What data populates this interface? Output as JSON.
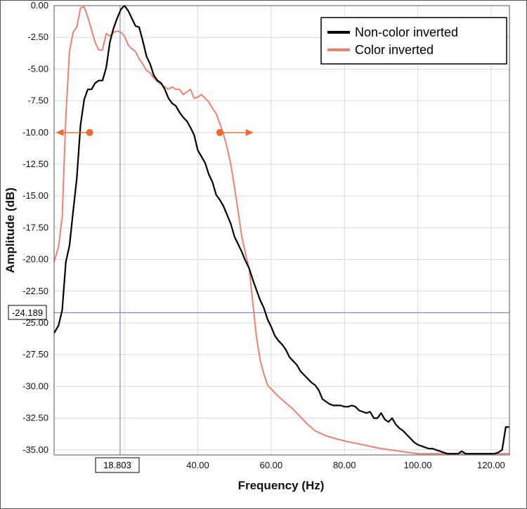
{
  "chart_data": {
    "type": "line",
    "xlabel": "Frequency (Hz)",
    "ylabel": "Amplitude (dB)",
    "xlim": [
      0.8,
      125
    ],
    "ylim": [
      -35.4,
      0
    ],
    "x_ticks": [
      "20.00",
      "40.00",
      "60.00",
      "80.00",
      "100.00",
      "120.00"
    ],
    "y_ticks": [
      "0.00",
      "-2.50",
      "-5.00",
      "-7.50",
      "-10.00",
      "-12.50",
      "-15.00",
      "-17.50",
      "-20.00",
      "-22.50",
      "-25.00",
      "-27.50",
      "-30.00",
      "-32.50",
      "-35.00"
    ],
    "grid": true,
    "legend_position": "top-right",
    "cursor": {
      "x": 18.803,
      "y": -24.189,
      "x_label": "18.803",
      "y_label": "-24.189"
    },
    "markers": [
      {
        "series": "Color inverted",
        "x": 10.5,
        "y": -10.0,
        "arrow": "left"
      },
      {
        "series": "Color inverted",
        "x": 46.0,
        "y": -10.0,
        "arrow": "right"
      }
    ],
    "series": [
      {
        "name": "Non-color inverted",
        "color": "#000000",
        "x": [
          0.8,
          2,
          3,
          4,
          5,
          6,
          7,
          8,
          9,
          10,
          11,
          12,
          13,
          14,
          15,
          16,
          17,
          18,
          19,
          20,
          21,
          22,
          23,
          24,
          25,
          26,
          27,
          28,
          29,
          30,
          31,
          32,
          33,
          34,
          35,
          36,
          37,
          38,
          39,
          40,
          41,
          42,
          43,
          44,
          45,
          46,
          47,
          48,
          49,
          50,
          51,
          52,
          53,
          54,
          55,
          56,
          57,
          58,
          59,
          60,
          61,
          62,
          63,
          64,
          65,
          66,
          67,
          68,
          69,
          70,
          71,
          72,
          73,
          74,
          75,
          76,
          77,
          78,
          79,
          80,
          81,
          82,
          83,
          84,
          85,
          86,
          87,
          88,
          89,
          90,
          91,
          92,
          93,
          94,
          95,
          96,
          97,
          98,
          99,
          100,
          101,
          102,
          103,
          104,
          105,
          106,
          107,
          108,
          109,
          110,
          111,
          112,
          113,
          114,
          115,
          116,
          117,
          118,
          119,
          120,
          121,
          122,
          123,
          124,
          125
        ],
        "y": [
          -25.8,
          -25.2,
          -24.0,
          -20.2,
          -18.9,
          -16.2,
          -13.6,
          -9.4,
          -7.4,
          -6.6,
          -6.6,
          -6.1,
          -5.9,
          -5.9,
          -4.9,
          -2.9,
          -1.8,
          -1.0,
          -0.3,
          0.0,
          -0.4,
          -1.0,
          -1.6,
          -1.7,
          -2.8,
          -4.0,
          -4.6,
          -5.5,
          -5.9,
          -6.1,
          -6.6,
          -7.3,
          -7.7,
          -7.9,
          -8.4,
          -8.8,
          -9.1,
          -9.6,
          -10.2,
          -11.4,
          -11.9,
          -12.4,
          -13.3,
          -13.9,
          -14.9,
          -15.3,
          -15.8,
          -16.5,
          -17.2,
          -18.2,
          -18.8,
          -19.4,
          -20.1,
          -20.7,
          -21.6,
          -22.4,
          -23.2,
          -23.8,
          -24.7,
          -25.3,
          -26.0,
          -26.4,
          -26.7,
          -27.1,
          -27.7,
          -28.0,
          -28.3,
          -28.8,
          -29.1,
          -29.4,
          -29.7,
          -29.9,
          -30.3,
          -31.0,
          -31.2,
          -31.4,
          -31.5,
          -31.5,
          -31.5,
          -31.6,
          -31.6,
          -31.5,
          -31.6,
          -31.9,
          -32.0,
          -32.1,
          -32.0,
          -32.5,
          -32.5,
          -32.1,
          -32.6,
          -32.8,
          -32.5,
          -33.0,
          -33.3,
          -33.5,
          -33.8,
          -34.1,
          -34.4,
          -34.6,
          -34.7,
          -34.8,
          -34.9,
          -34.9,
          -35.0,
          -35.1,
          -35.2,
          -35.3,
          -35.3,
          -35.3,
          -35.3,
          -35.1,
          -35.3,
          -35.3,
          -35.3,
          -35.3,
          -35.3,
          -35.3,
          -35.3,
          -35.3,
          -35.3,
          -35.2,
          -35.0,
          -33.2,
          -33.2
        ]
      },
      {
        "name": "Color inverted",
        "color": "#f08070",
        "x": [
          0.8,
          2,
          3,
          4,
          5,
          6,
          7,
          8,
          9,
          10,
          11,
          12,
          13,
          14,
          15,
          16,
          17,
          18,
          19,
          20,
          21,
          22,
          23,
          24,
          25,
          26,
          27,
          28,
          29,
          30,
          31,
          32,
          33,
          34,
          35,
          36,
          37,
          38,
          39,
          40,
          41,
          42,
          43,
          44,
          45,
          46,
          47,
          48,
          49,
          50,
          51,
          52,
          53,
          54,
          55,
          56,
          57,
          58,
          59,
          60,
          62,
          64,
          66,
          68,
          70,
          72,
          75,
          80,
          85,
          90,
          95,
          100,
          105,
          110,
          115,
          120,
          123,
          125
        ],
        "y": [
          -20.2,
          -19.0,
          -16.7,
          -8.8,
          -3.6,
          -2.1,
          -1.7,
          -0.2,
          -0.1,
          -0.9,
          -1.9,
          -2.9,
          -3.5,
          -3.5,
          -2.2,
          -2.4,
          -2.1,
          -2.0,
          -2.1,
          -2.4,
          -3.1,
          -3.4,
          -3.6,
          -4.2,
          -4.6,
          -5.1,
          -5.3,
          -5.7,
          -6.0,
          -6.2,
          -6.4,
          -6.6,
          -6.4,
          -6.6,
          -6.6,
          -7.0,
          -6.8,
          -6.6,
          -7.3,
          -7.2,
          -7.0,
          -7.3,
          -7.6,
          -8.1,
          -8.5,
          -9.3,
          -10.1,
          -11.2,
          -12.5,
          -14.3,
          -16.2,
          -18.2,
          -19.5,
          -20.7,
          -23.4,
          -26.1,
          -27.9,
          -29.0,
          -29.9,
          -30.2,
          -30.8,
          -31.3,
          -31.8,
          -32.4,
          -33.0,
          -33.5,
          -33.9,
          -34.3,
          -34.6,
          -34.9,
          -35.1,
          -35.3,
          -35.3,
          -35.3,
          -35.3,
          -35.3,
          -35.3,
          -35.3
        ]
      }
    ]
  }
}
